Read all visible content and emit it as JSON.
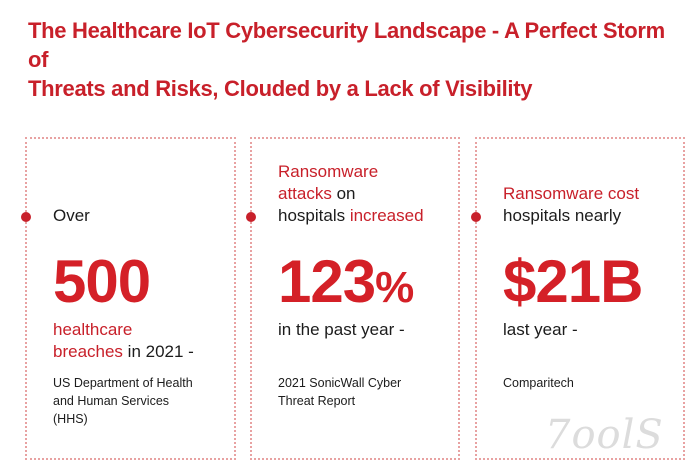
{
  "title": {
    "line1": "The Healthcare IoT Cybersecurity Landscape - A Perfect Storm of",
    "line2": "Threats and Risks, Clouded by a Lack of Visibility"
  },
  "cards": [
    {
      "lead": "Over",
      "value": "500",
      "after_red_1": "healthcare",
      "after_red_2": "breaches",
      "after_black": " in 2021 -",
      "source_1": "US Department of Health",
      "source_2": "and Human Services",
      "source_3": "(HHS)"
    },
    {
      "lead_red_1": "Ransomware",
      "lead_red_2": "attacks",
      "lead_black_2": " on",
      "lead_black_3": "hospitals ",
      "lead_red_3": "increased",
      "value_num": "123",
      "value_pct": "%",
      "after": "in the past year -",
      "source_1": "2021 SonicWall Cyber",
      "source_2": "Threat Report"
    },
    {
      "lead_red_1": "Ransomware cost",
      "lead_black_2": "hospitals nearly",
      "value": "$21B",
      "after": "last year -",
      "source_1": "Comparitech"
    }
  ],
  "watermark": "7oolS",
  "colors": {
    "accent": "#c8202a",
    "border": "#e8a2a2"
  }
}
